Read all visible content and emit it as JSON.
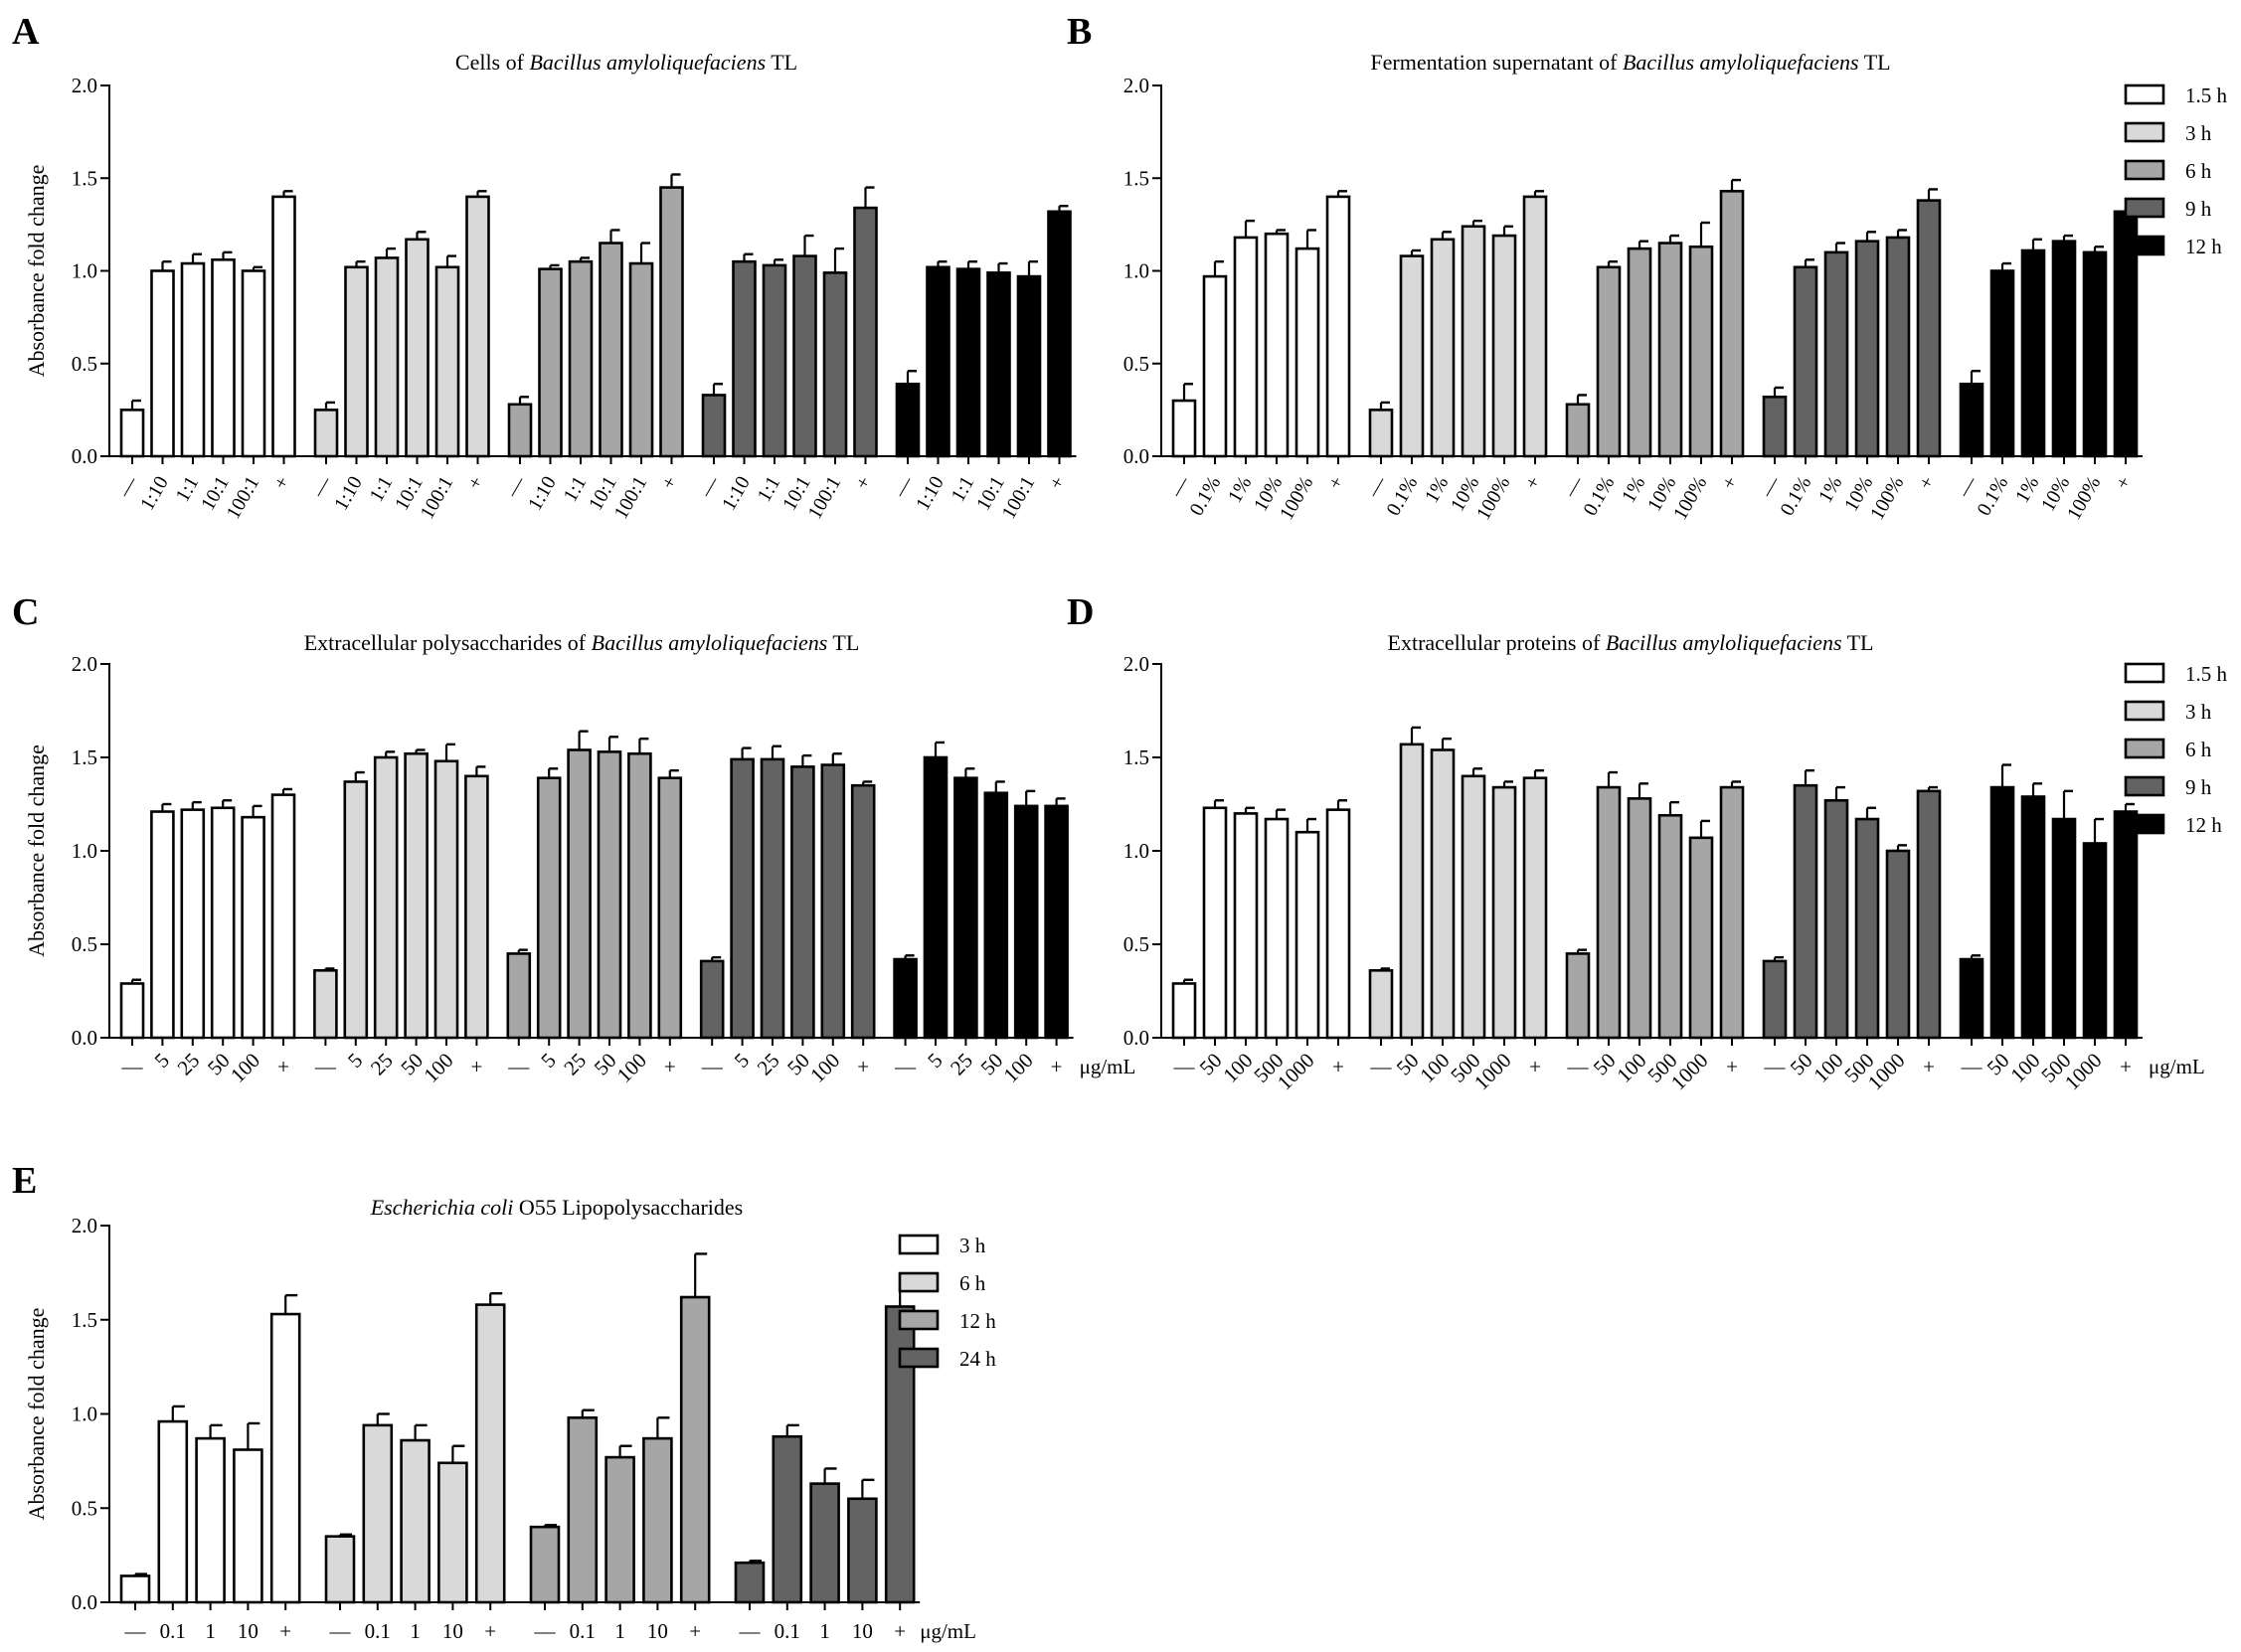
{
  "figure": {
    "y_axis_label": "Absorbance fold change",
    "y_ticks": [
      "0.0",
      "0.5",
      "1.0",
      "1.5",
      "2.0"
    ],
    "colors": {
      "white": "#ffffff",
      "light_gray": "#d9d9d9",
      "mid_gray": "#a6a6a6",
      "dark_gray": "#636363",
      "black": "#000000"
    }
  },
  "chart_data": [
    {
      "panel": "A",
      "type": "bar",
      "title_pre": "Cells of ",
      "title_italic": "Bacillus amyloliquefaciens",
      "title_post": " TL",
      "ylabel": "Absorbance fold change",
      "ylim": [
        0,
        2.0
      ],
      "categories": [
        "—",
        "1:10",
        "1:1",
        "10:1",
        "100:1",
        "+"
      ],
      "unit_label": "",
      "legend": [],
      "series": [
        {
          "name": "1.5 h",
          "color": "#ffffff",
          "values": [
            0.25,
            1.0,
            1.04,
            1.06,
            1.0,
            1.4
          ],
          "errors": [
            0.05,
            0.05,
            0.05,
            0.04,
            0.02,
            0.03
          ]
        },
        {
          "name": "3 h",
          "color": "#d9d9d9",
          "values": [
            0.25,
            1.02,
            1.07,
            1.17,
            1.02,
            1.4
          ],
          "errors": [
            0.04,
            0.03,
            0.05,
            0.04,
            0.06,
            0.03
          ]
        },
        {
          "name": "6 h",
          "color": "#a6a6a6",
          "values": [
            0.28,
            1.01,
            1.05,
            1.15,
            1.04,
            1.45
          ],
          "errors": [
            0.04,
            0.02,
            0.02,
            0.07,
            0.11,
            0.07
          ]
        },
        {
          "name": "9 h",
          "color": "#636363",
          "values": [
            0.33,
            1.05,
            1.03,
            1.08,
            0.99,
            1.34
          ],
          "errors": [
            0.06,
            0.04,
            0.03,
            0.11,
            0.13,
            0.11
          ]
        },
        {
          "name": "12 h",
          "color": "#000000",
          "values": [
            0.39,
            1.02,
            1.01,
            0.99,
            0.97,
            1.32
          ],
          "errors": [
            0.07,
            0.03,
            0.04,
            0.05,
            0.08,
            0.03
          ]
        }
      ]
    },
    {
      "panel": "B",
      "type": "bar",
      "title_pre": "Fermentation supernatant of ",
      "title_italic": "Bacillus amyloliquefaciens",
      "title_post": " TL",
      "ylabel": "",
      "ylim": [
        0,
        2.0
      ],
      "categories": [
        "—",
        "0.1%",
        "1%",
        "10%",
        "100%",
        "+"
      ],
      "unit_label": "",
      "legend": [
        "1.5 h",
        "3 h",
        "6 h",
        "9 h",
        "12 h"
      ],
      "series": [
        {
          "name": "1.5 h",
          "color": "#ffffff",
          "values": [
            0.3,
            0.97,
            1.18,
            1.2,
            1.12,
            1.4
          ],
          "errors": [
            0.09,
            0.08,
            0.09,
            0.02,
            0.1,
            0.03
          ]
        },
        {
          "name": "3 h",
          "color": "#d9d9d9",
          "values": [
            0.25,
            1.08,
            1.17,
            1.24,
            1.19,
            1.4
          ],
          "errors": [
            0.04,
            0.03,
            0.04,
            0.03,
            0.05,
            0.03
          ]
        },
        {
          "name": "6 h",
          "color": "#a6a6a6",
          "values": [
            0.28,
            1.02,
            1.12,
            1.15,
            1.13,
            1.43
          ],
          "errors": [
            0.05,
            0.03,
            0.04,
            0.04,
            0.13,
            0.06
          ]
        },
        {
          "name": "9 h",
          "color": "#636363",
          "values": [
            0.32,
            1.02,
            1.1,
            1.16,
            1.18,
            1.38
          ],
          "errors": [
            0.05,
            0.04,
            0.05,
            0.05,
            0.04,
            0.06
          ]
        },
        {
          "name": "12 h",
          "color": "#000000",
          "values": [
            0.39,
            1.0,
            1.11,
            1.16,
            1.1,
            1.32
          ],
          "errors": [
            0.07,
            0.04,
            0.06,
            0.03,
            0.03,
            0.02
          ]
        }
      ]
    },
    {
      "panel": "C",
      "type": "bar",
      "title_pre": "Extracellular polysaccharides of ",
      "title_italic": "Bacillus amyloliquefaciens",
      "title_post": " TL",
      "ylabel": "Absorbance fold change",
      "ylim": [
        0,
        2.0
      ],
      "categories": [
        "—",
        "5",
        "25",
        "50",
        "100",
        "+"
      ],
      "unit_label": "μg/mL",
      "legend": [],
      "series": [
        {
          "name": "1.5 h",
          "color": "#ffffff",
          "values": [
            0.29,
            1.21,
            1.22,
            1.23,
            1.18,
            1.3
          ],
          "errors": [
            0.02,
            0.04,
            0.04,
            0.04,
            0.06,
            0.03
          ]
        },
        {
          "name": "3 h",
          "color": "#d9d9d9",
          "values": [
            0.36,
            1.37,
            1.5,
            1.52,
            1.48,
            1.4
          ],
          "errors": [
            0.01,
            0.05,
            0.03,
            0.02,
            0.09,
            0.05
          ]
        },
        {
          "name": "6 h",
          "color": "#a6a6a6",
          "values": [
            0.45,
            1.39,
            1.54,
            1.53,
            1.52,
            1.39
          ],
          "errors": [
            0.02,
            0.05,
            0.1,
            0.08,
            0.08,
            0.04
          ]
        },
        {
          "name": "9 h",
          "color": "#636363",
          "values": [
            0.41,
            1.49,
            1.49,
            1.45,
            1.46,
            1.35
          ],
          "errors": [
            0.02,
            0.06,
            0.07,
            0.06,
            0.06,
            0.02
          ]
        },
        {
          "name": "12 h",
          "color": "#000000",
          "values": [
            0.42,
            1.5,
            1.39,
            1.31,
            1.24,
            1.24
          ],
          "errors": [
            0.02,
            0.08,
            0.05,
            0.06,
            0.08,
            0.04
          ]
        }
      ]
    },
    {
      "panel": "D",
      "type": "bar",
      "title_pre": "Extracellular proteins of ",
      "title_italic": "Bacillus amyloliquefaciens",
      "title_post": " TL",
      "ylabel": "",
      "ylim": [
        0,
        2.0
      ],
      "categories": [
        "—",
        "50",
        "100",
        "500",
        "1000",
        "+"
      ],
      "unit_label": "μg/mL",
      "legend": [
        "1.5 h",
        "3 h",
        "6 h",
        "9 h",
        "12 h"
      ],
      "series": [
        {
          "name": "1.5 h",
          "color": "#ffffff",
          "values": [
            0.29,
            1.23,
            1.2,
            1.17,
            1.1,
            1.22
          ],
          "errors": [
            0.02,
            0.04,
            0.03,
            0.05,
            0.07,
            0.05
          ]
        },
        {
          "name": "3 h",
          "color": "#d9d9d9",
          "values": [
            0.36,
            1.57,
            1.54,
            1.4,
            1.34,
            1.39
          ],
          "errors": [
            0.01,
            0.09,
            0.06,
            0.04,
            0.03,
            0.04
          ]
        },
        {
          "name": "6 h",
          "color": "#a6a6a6",
          "values": [
            0.45,
            1.34,
            1.28,
            1.19,
            1.07,
            1.34
          ],
          "errors": [
            0.02,
            0.08,
            0.08,
            0.07,
            0.09,
            0.03
          ]
        },
        {
          "name": "9 h",
          "color": "#636363",
          "values": [
            0.41,
            1.35,
            1.27,
            1.17,
            1.0,
            1.32
          ],
          "errors": [
            0.02,
            0.08,
            0.07,
            0.06,
            0.03,
            0.02
          ]
        },
        {
          "name": "12 h",
          "color": "#000000",
          "values": [
            0.42,
            1.34,
            1.29,
            1.17,
            1.04,
            1.21
          ],
          "errors": [
            0.02,
            0.12,
            0.07,
            0.15,
            0.13,
            0.04
          ]
        }
      ]
    },
    {
      "panel": "E",
      "type": "bar",
      "title_pre": "",
      "title_italic": "Escherichia coli",
      "title_post": " O55 Lipopolysaccharides",
      "ylabel": "Absorbance fold change",
      "ylim": [
        0,
        2.0
      ],
      "categories": [
        "—",
        "0.1",
        "1",
        "10",
        "+"
      ],
      "unit_label": "μg/mL",
      "legend": [
        "3 h",
        "6 h",
        "12 h",
        "24 h"
      ],
      "series": [
        {
          "name": "3 h",
          "color": "#ffffff",
          "values": [
            0.14,
            0.96,
            0.87,
            0.81,
            1.53
          ],
          "errors": [
            0.01,
            0.08,
            0.07,
            0.14,
            0.1
          ]
        },
        {
          "name": "6 h",
          "color": "#d9d9d9",
          "values": [
            0.35,
            0.94,
            0.86,
            0.74,
            1.58
          ],
          "errors": [
            0.01,
            0.06,
            0.08,
            0.09,
            0.06
          ]
        },
        {
          "name": "12 h",
          "color": "#a6a6a6",
          "values": [
            0.4,
            0.98,
            0.77,
            0.87,
            1.62
          ],
          "errors": [
            0.01,
            0.04,
            0.06,
            0.11,
            0.23
          ]
        },
        {
          "name": "24 h",
          "color": "#636363",
          "values": [
            0.21,
            0.88,
            0.63,
            0.55,
            1.57
          ],
          "errors": [
            0.01,
            0.06,
            0.08,
            0.1,
            0.16
          ]
        }
      ]
    }
  ]
}
